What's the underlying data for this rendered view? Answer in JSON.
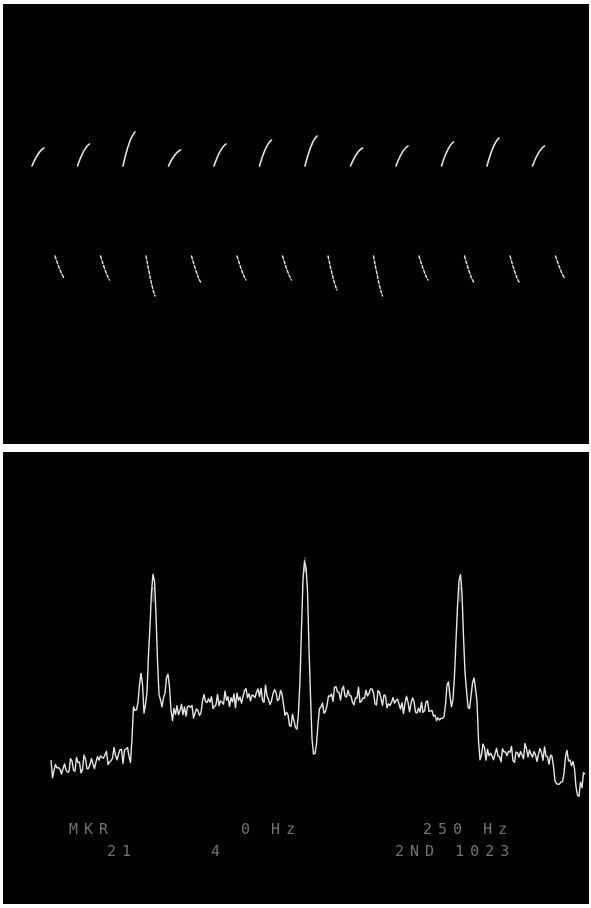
{
  "colors": {
    "background": "#000000",
    "trace": "#e6e6e6",
    "readout_text": "#9a9a9a",
    "page": "#ffffff"
  },
  "waveform": {
    "cycles": 12,
    "upper_segments": 12,
    "lower_segments": 12
  },
  "spectrum": {
    "marker_peaks": 3,
    "readout": {
      "row1_left": "MKR",
      "row1_mid": "0 Hz",
      "row1_right": "250 Hz",
      "row2_left": "21",
      "row2_mid": "4",
      "row2_right": "2ND 1023"
    }
  }
}
